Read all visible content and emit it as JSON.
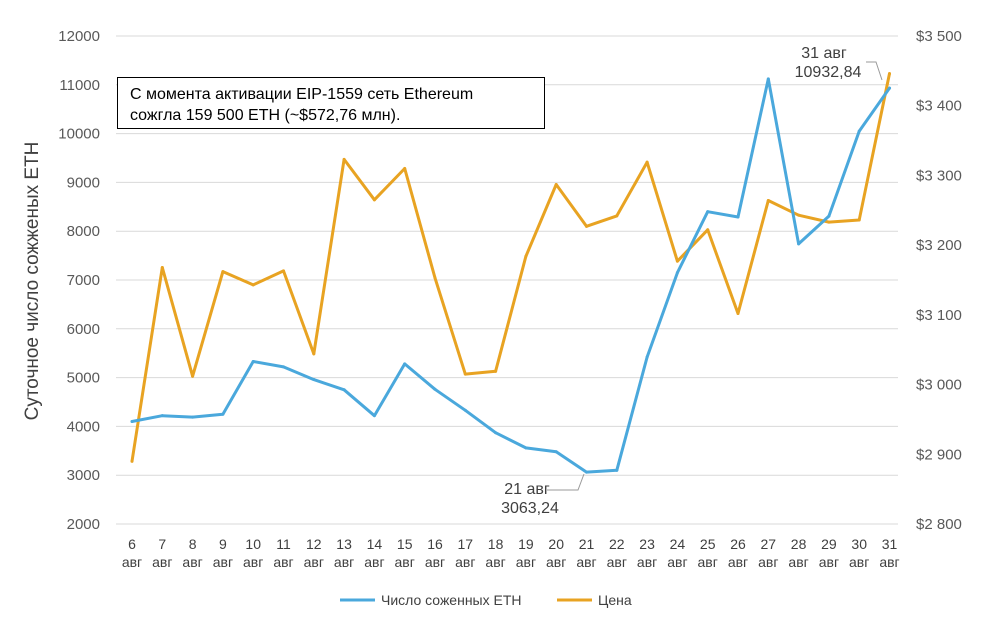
{
  "chart_data": {
    "type": "line",
    "categories": [
      {
        "day": "6",
        "month": "авг"
      },
      {
        "day": "7",
        "month": "авг"
      },
      {
        "day": "8",
        "month": "авг"
      },
      {
        "day": "9",
        "month": "авг"
      },
      {
        "day": "10",
        "month": "авг"
      },
      {
        "day": "11",
        "month": "авг"
      },
      {
        "day": "12",
        "month": "авг"
      },
      {
        "day": "13",
        "month": "авг"
      },
      {
        "day": "14",
        "month": "авг"
      },
      {
        "day": "15",
        "month": "авг"
      },
      {
        "day": "16",
        "month": "авг"
      },
      {
        "day": "17",
        "month": "авг"
      },
      {
        "day": "18",
        "month": "авг"
      },
      {
        "day": "19",
        "month": "авг"
      },
      {
        "day": "20",
        "month": "авг"
      },
      {
        "day": "21",
        "month": "авг"
      },
      {
        "day": "22",
        "month": "авг"
      },
      {
        "day": "23",
        "month": "авг"
      },
      {
        "day": "24",
        "month": "авг"
      },
      {
        "day": "25",
        "month": "авг"
      },
      {
        "day": "26",
        "month": "авг"
      },
      {
        "day": "27",
        "month": "авг"
      },
      {
        "day": "28",
        "month": "авг"
      },
      {
        "day": "29",
        "month": "авг"
      },
      {
        "day": "30",
        "month": "авг"
      },
      {
        "day": "31",
        "month": "авг"
      }
    ],
    "series": [
      {
        "name": "Число соженных ETH",
        "axis": "left",
        "color": "#4AA8DC",
        "values": [
          4100,
          4220,
          4190,
          4250,
          5330,
          5220,
          4960,
          4750,
          4220,
          5280,
          4760,
          4330,
          3870,
          3560,
          3480,
          3063.24,
          3100,
          5420,
          7150,
          8400,
          8290,
          11120,
          7740,
          8310,
          10050,
          10932.84
        ]
      },
      {
        "name": "Цена",
        "axis": "right",
        "color": "#E8A322",
        "values": [
          2890,
          3168,
          3012,
          3162,
          3143,
          3163,
          3044,
          3323,
          3265,
          3310,
          3153,
          3015,
          3019,
          3184,
          3287,
          3227,
          3242,
          3319,
          3177,
          3222,
          3102,
          3264,
          3243,
          3233,
          3236,
          3446
        ]
      }
    ],
    "y_left": {
      "label": "Суточное число сожженых ETH",
      "ylim": [
        2000,
        12000
      ],
      "ticks": [
        "2000",
        "3000",
        "4000",
        "5000",
        "6000",
        "7000",
        "8000",
        "9000",
        "10000",
        "11000",
        "12000"
      ]
    },
    "y_right": {
      "ylim": [
        2800,
        3500
      ],
      "ticks": [
        "$2 800",
        "$2 900",
        "$3 000",
        "$3 100",
        "$3 200",
        "$3 300",
        "$3 400",
        "$3 500"
      ]
    },
    "annotations": [
      {
        "date": "21 авг",
        "value": "3063,24"
      },
      {
        "date": "31 авг",
        "value": "10932,84"
      }
    ],
    "note": {
      "line1": "С момента активации EIP-1559 сеть Ethereum",
      "line2": "сожгла 159 500 ETH (~$572,76 млн)."
    },
    "legend": {
      "position": "bottom",
      "items": [
        "Число соженных ETH",
        "Цена"
      ]
    },
    "grid": true
  }
}
